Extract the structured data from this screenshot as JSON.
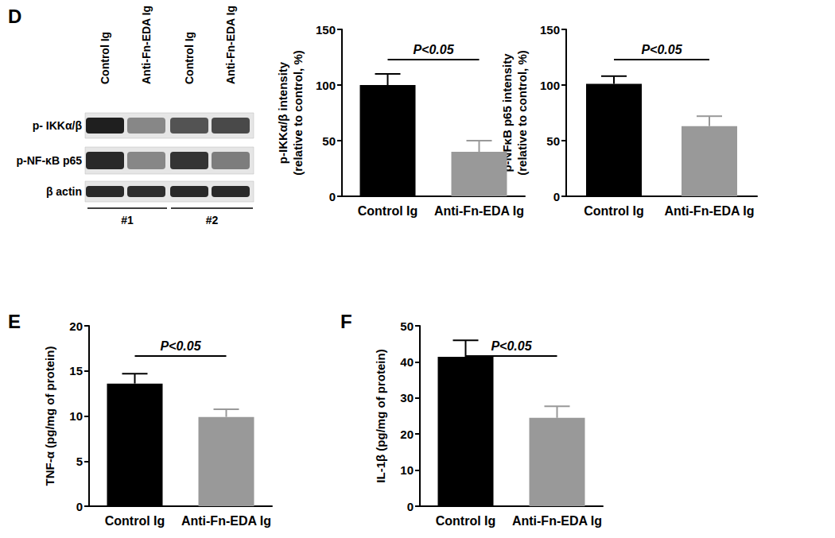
{
  "chart_data": [
    {
      "type": "bar",
      "y_label": "p-IKKα/β intensity\n(relative to control, %)",
      "categories": [
        "Control Ig",
        "Anti-Fn-EDA Ig"
      ],
      "values": [
        100,
        40
      ],
      "errors": [
        10,
        10
      ],
      "colors": [
        "#000000",
        "#999999"
      ],
      "ylim": [
        0,
        150
      ],
      "yticks": [
        0,
        50,
        100,
        150
      ],
      "annotation": "P<0.05"
    },
    {
      "type": "bar",
      "y_label": "p-NFκB p65 intensity\n(relative to control, %)",
      "categories": [
        "Control Ig",
        "Anti-Fn-EDA Ig"
      ],
      "values": [
        101,
        63
      ],
      "errors": [
        7,
        9
      ],
      "colors": [
        "#000000",
        "#999999"
      ],
      "ylim": [
        0,
        150
      ],
      "yticks": [
        0,
        50,
        100,
        150
      ],
      "annotation": "P<0.05"
    },
    {
      "type": "bar",
      "panel": "E",
      "y_label": "TNF-α (pg/mg of protein)",
      "categories": [
        "Control Ig",
        "Anti-Fn-EDA Ig"
      ],
      "values": [
        13.6,
        9.9
      ],
      "errors": [
        1.1,
        0.85
      ],
      "colors": [
        "#000000",
        "#999999"
      ],
      "ylim": [
        0,
        20
      ],
      "yticks": [
        0,
        5,
        10,
        15,
        20
      ],
      "annotation": "P<0.05"
    },
    {
      "type": "bar",
      "panel": "F",
      "y_label": "IL-1β (pg/mg of protein)",
      "categories": [
        "Control Ig",
        "Anti-Fn-EDA Ig"
      ],
      "values": [
        41.4,
        24.5
      ],
      "errors": [
        4.6,
        3.2
      ],
      "colors": [
        "#000000",
        "#999999"
      ],
      "ylim": [
        0,
        50
      ],
      "yticks": [
        0,
        10,
        20,
        30,
        40,
        50
      ],
      "annotation": "P<0.05"
    }
  ],
  "blot": {
    "panel": "D",
    "lanes": [
      "Control Ig",
      "Anti-Fn-EDA Ig",
      "Control Ig",
      "Anti-Fn-EDA Ig"
    ],
    "rows": [
      "p- IKKα/β",
      "p-NF-κB p65",
      "β actin"
    ],
    "groups": [
      "#1",
      "#2"
    ]
  }
}
